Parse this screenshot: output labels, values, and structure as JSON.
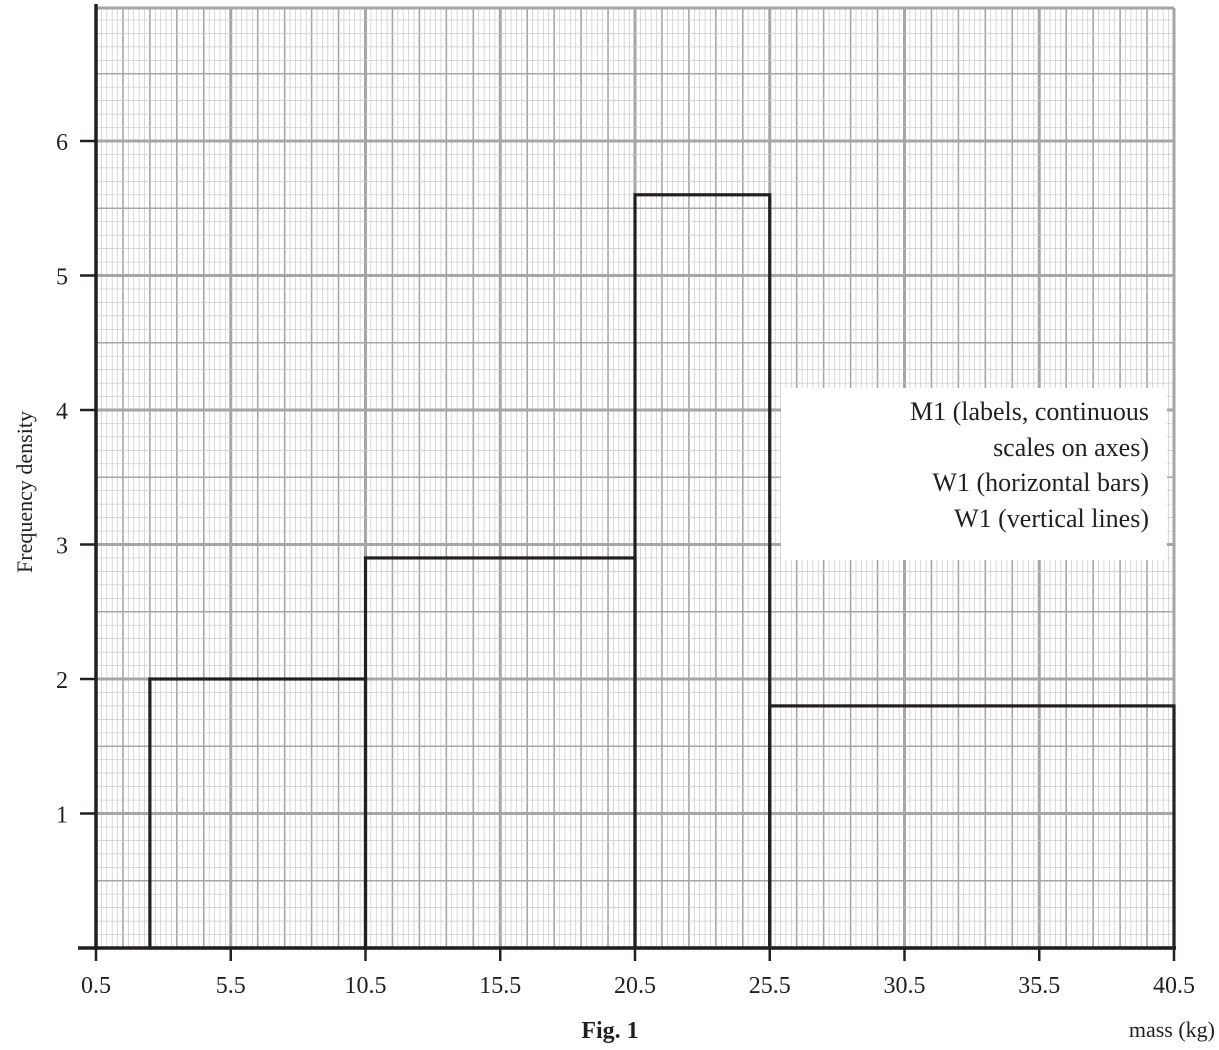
{
  "chart_data": {
    "type": "bar",
    "histogram": true,
    "title": "",
    "caption": "Fig. 1",
    "xlabel": "mass (kg)",
    "ylabel": "Frequency density",
    "xlim": [
      0.5,
      40.5
    ],
    "ylim": [
      0,
      6
    ],
    "x_ticks": [
      "0.5",
      "5.5",
      "10.5",
      "15.5",
      "20.5",
      "25.5",
      "30.5",
      "35.5",
      "40.5"
    ],
    "y_ticks": [
      "1",
      "2",
      "3",
      "4",
      "5",
      "6"
    ],
    "grid": true,
    "bars": [
      {
        "x_start": 2.5,
        "x_end": 10.5,
        "value": 2.0
      },
      {
        "x_start": 10.5,
        "x_end": 20.5,
        "value": 2.9
      },
      {
        "x_start": 20.5,
        "x_end": 25.5,
        "value": 5.6
      },
      {
        "x_start": 25.5,
        "x_end": 40.5,
        "value": 1.8
      }
    ]
  },
  "marking_note": {
    "lines": [
      "M1 (labels, continuous",
      "scales on axes)",
      "W1 (horizontal bars)",
      "W1 (vertical lines)"
    ]
  },
  "colors": {
    "minor_grid": "#c8c8c8",
    "major_grid": "#a6a6a6",
    "axis": "#231f20",
    "bar_outline": "#231f20"
  }
}
